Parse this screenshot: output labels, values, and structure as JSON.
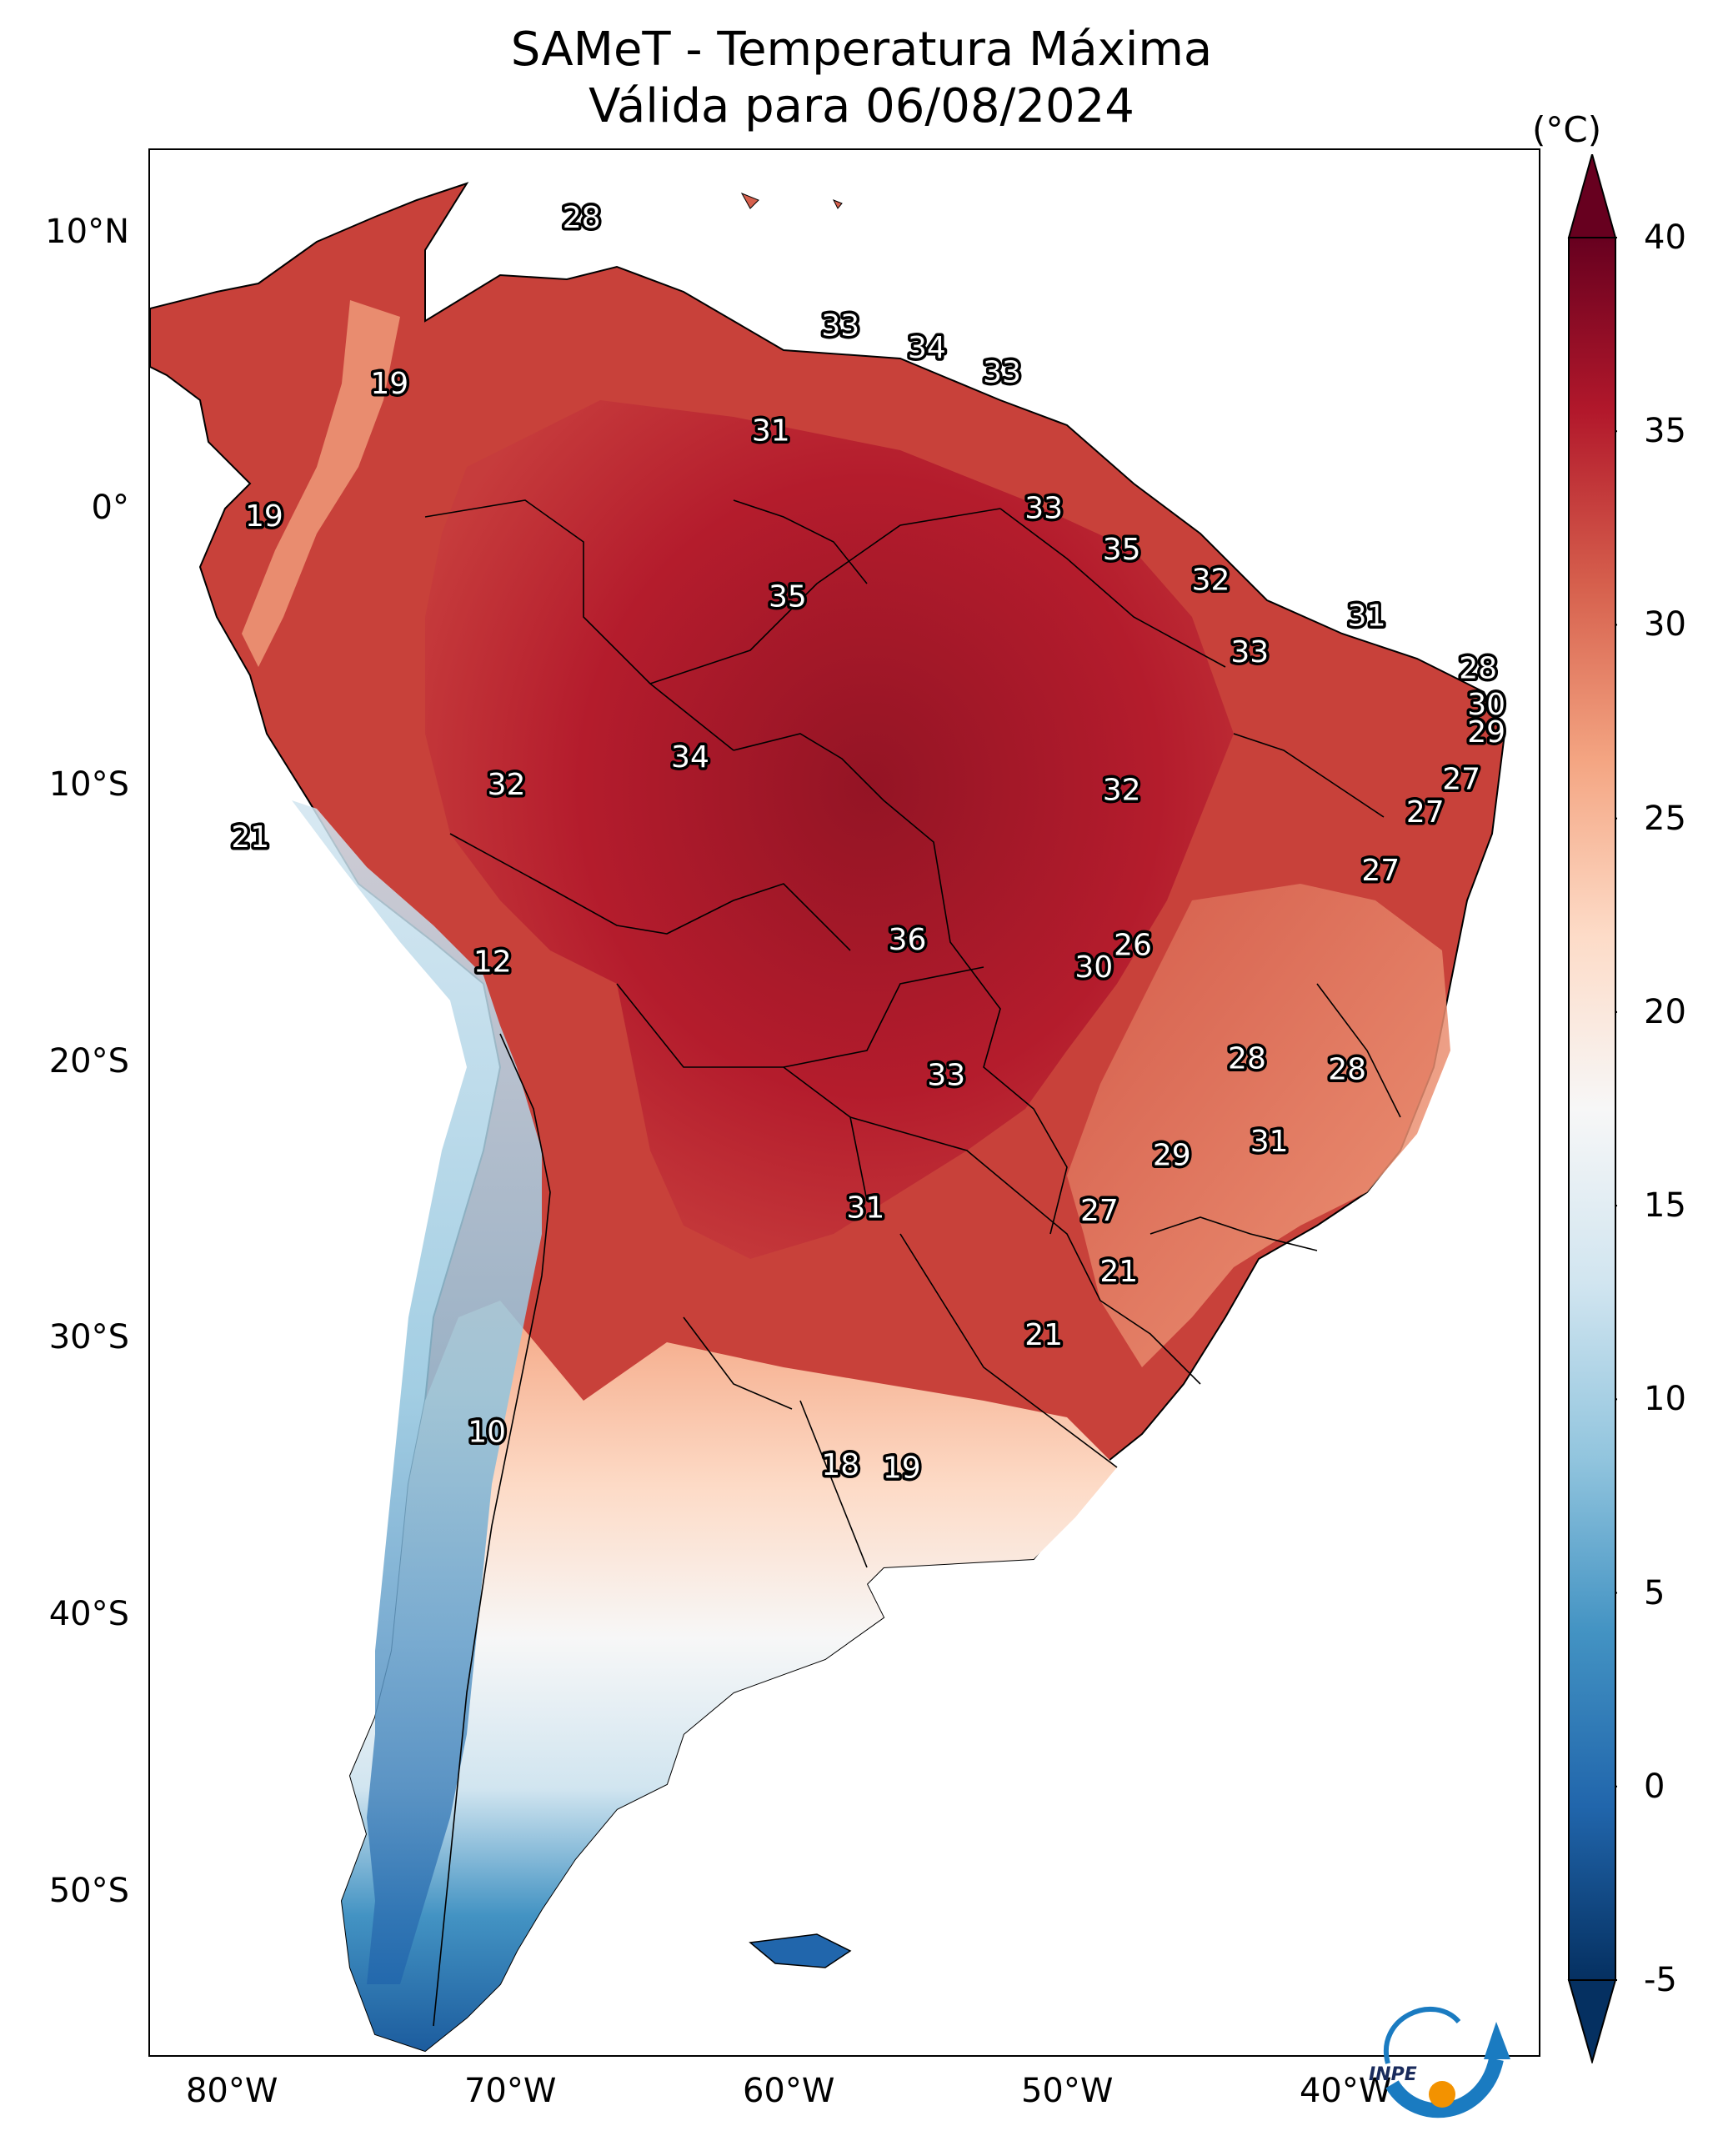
{
  "title": "SAMeT - Temperatura Máxima",
  "subtitle": "Válida para 06/08/2024",
  "unit": "(°C)",
  "latitude_labels": [
    {
      "text": "10°N",
      "lat": 10
    },
    {
      "text": "0°",
      "lat": 0
    },
    {
      "text": "10°S",
      "lat": -10
    },
    {
      "text": "20°S",
      "lat": -20
    },
    {
      "text": "30°S",
      "lat": -30
    },
    {
      "text": "40°S",
      "lat": -40
    },
    {
      "text": "50°S",
      "lat": -50
    }
  ],
  "longitude_labels": [
    {
      "text": "80°W",
      "lon": -80
    },
    {
      "text": "70°W",
      "lon": -70
    },
    {
      "text": "60°W",
      "lon": -60
    },
    {
      "text": "50°W",
      "lon": -50
    },
    {
      "text": "40°W",
      "lon": -40
    }
  ],
  "extent": {
    "lon_min": -83,
    "lon_max": -33,
    "lat_min": -56,
    "lat_max": 13
  },
  "colorbar": {
    "min": -5,
    "max": 40,
    "ticks": [
      "40",
      "35",
      "30",
      "25",
      "20",
      "15",
      "10",
      "5",
      "0",
      "-5"
    ],
    "colors": [
      "#053061",
      "#2166ac",
      "#4393c3",
      "#92c5de",
      "#d1e5f0",
      "#f7f7f7",
      "#fddbc7",
      "#f4a582",
      "#d6604d",
      "#b2182b",
      "#67001f"
    ]
  },
  "temperature_labels": [
    {
      "text": "28",
      "lon": -67.5,
      "lat": 10.5
    },
    {
      "text": "19",
      "lon": -74.4,
      "lat": 4.5
    },
    {
      "text": "33",
      "lon": -58.2,
      "lat": 6.6
    },
    {
      "text": "34",
      "lon": -55.1,
      "lat": 5.8
    },
    {
      "text": "33",
      "lon": -52.4,
      "lat": 4.9
    },
    {
      "text": "31",
      "lon": -60.7,
      "lat": 2.8
    },
    {
      "text": "19",
      "lon": -78.9,
      "lat": -0.3
    },
    {
      "text": "33",
      "lon": -50.9,
      "lat": 0
    },
    {
      "text": "35",
      "lon": -48.1,
      "lat": -1.5
    },
    {
      "text": "32",
      "lon": -44.9,
      "lat": -2.6
    },
    {
      "text": "31",
      "lon": -39.3,
      "lat": -3.9
    },
    {
      "text": "35",
      "lon": -60.1,
      "lat": -3.2
    },
    {
      "text": "33",
      "lon": -43.5,
      "lat": -5.2
    },
    {
      "text": "28",
      "lon": -35.3,
      "lat": -5.8
    },
    {
      "text": "30",
      "lon": -35.0,
      "lat": -7.1
    },
    {
      "text": "29",
      "lon": -35.0,
      "lat": -8.1
    },
    {
      "text": "34",
      "lon": -63.6,
      "lat": -9.0
    },
    {
      "text": "32",
      "lon": -70.2,
      "lat": -10.0
    },
    {
      "text": "32",
      "lon": -48.1,
      "lat": -10.2
    },
    {
      "text": "27",
      "lon": -35.9,
      "lat": -9.8
    },
    {
      "text": "27",
      "lon": -37.2,
      "lat": -11.0
    },
    {
      "text": "27",
      "lon": -38.8,
      "lat": -13.1
    },
    {
      "text": "21",
      "lon": -79.4,
      "lat": -11.9
    },
    {
      "text": "36",
      "lon": -55.8,
      "lat": -15.6
    },
    {
      "text": "26",
      "lon": -47.7,
      "lat": -15.8
    },
    {
      "text": "30",
      "lon": -49.1,
      "lat": -16.6
    },
    {
      "text": "12",
      "lon": -70.7,
      "lat": -16.4
    },
    {
      "text": "28",
      "lon": -43.6,
      "lat": -19.9
    },
    {
      "text": "28",
      "lon": -40.0,
      "lat": -20.3
    },
    {
      "text": "33",
      "lon": -54.4,
      "lat": -20.5
    },
    {
      "text": "31",
      "lon": -42.8,
      "lat": -22.9
    },
    {
      "text": "29",
      "lon": -46.3,
      "lat": -23.4
    },
    {
      "text": "31",
      "lon": -57.3,
      "lat": -25.3
    },
    {
      "text": "27",
      "lon": -48.9,
      "lat": -25.4
    },
    {
      "text": "21",
      "lon": -48.2,
      "lat": -27.6
    },
    {
      "text": "21",
      "lon": -50.9,
      "lat": -29.9
    },
    {
      "text": "10",
      "lon": -70.9,
      "lat": -33.4
    },
    {
      "text": "18",
      "lon": -58.2,
      "lat": -34.6
    },
    {
      "text": "19",
      "lon": -56.0,
      "lat": -34.7
    }
  ],
  "logo_text": "INPE",
  "logo_colors": {
    "blue": "#1a7bc1",
    "orange": "#f39200"
  }
}
